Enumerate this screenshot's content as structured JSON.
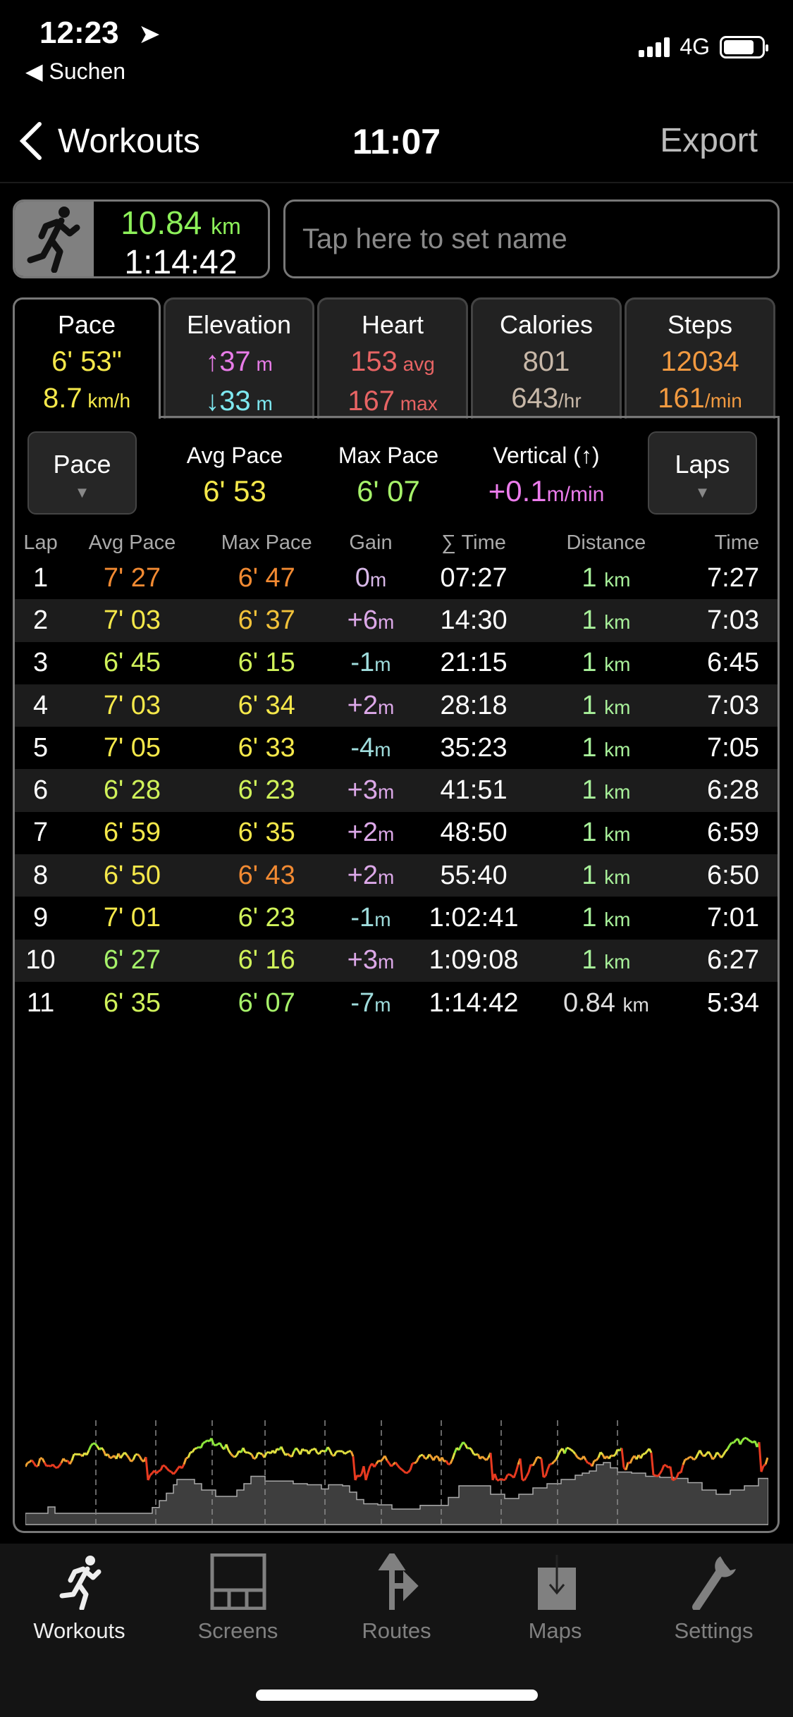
{
  "status": {
    "time": "12:23",
    "back": "◀ Suchen",
    "network": "4G"
  },
  "nav": {
    "back": "Workouts",
    "title": "11:07",
    "export": "Export"
  },
  "summary": {
    "distance": "10.84",
    "distance_unit": "km",
    "duration": "1:14:42"
  },
  "name_placeholder": "Tap here to set name",
  "tabs": [
    {
      "label": "Pace",
      "v1": "6' 53\"",
      "v2": "8.7",
      "v2u": " km/h"
    },
    {
      "label": "Elevation",
      "v1": "↑37",
      "v1u": " m",
      "v2": "↓33",
      "v2u": " m"
    },
    {
      "label": "Heart",
      "v1": "153",
      "v1u": " avg",
      "v2": "167",
      "v2u": " max"
    },
    {
      "label": "Calories",
      "v1": "801",
      "v2": "643",
      "v2u": "/hr"
    },
    {
      "label": "Steps",
      "v1": "12034",
      "v2": "161",
      "v2u": "/min"
    }
  ],
  "controls": {
    "left_select": "Pace",
    "right_select": "Laps",
    "stats": [
      {
        "label": "Avg Pace",
        "value": "6' 53"
      },
      {
        "label": "Max Pace",
        "value": "6' 07"
      },
      {
        "label": "Vertical (↑)",
        "value": "+0.1",
        "unit": "m/min"
      }
    ]
  },
  "colors": {
    "orange": "#f28a32",
    "yelloworange": "#f2c23a",
    "yellow": "#f5e84a",
    "yellowgreen": "#d0f25a",
    "green": "#a6f26a",
    "gain_pos": "#dca8e8",
    "gain_neg": "#9fdcdc",
    "gain_zero": "#d8b8e8",
    "distance": "#a8f09a"
  },
  "table": {
    "headers": [
      "Lap",
      "Avg Pace",
      "Max Pace",
      "Gain",
      "∑ Time",
      "Distance",
      "Time"
    ],
    "rows": [
      [
        "1",
        "7' 27",
        "6' 47",
        "0",
        "07:27",
        "1",
        "7:27"
      ],
      [
        "2",
        "7' 03",
        "6' 37",
        "+6",
        "14:30",
        "1",
        "7:03"
      ],
      [
        "3",
        "6' 45",
        "6' 15",
        "-1",
        "21:15",
        "1",
        "6:45"
      ],
      [
        "4",
        "7' 03",
        "6' 34",
        "+2",
        "28:18",
        "1",
        "7:03"
      ],
      [
        "5",
        "7' 05",
        "6' 33",
        "-4",
        "35:23",
        "1",
        "7:05"
      ],
      [
        "6",
        "6' 28",
        "6' 23",
        "+3",
        "41:51",
        "1",
        "6:28"
      ],
      [
        "7",
        "6' 59",
        "6' 35",
        "+2",
        "48:50",
        "1",
        "6:59"
      ],
      [
        "8",
        "6' 50",
        "6' 43",
        "+2",
        "55:40",
        "1",
        "6:50"
      ],
      [
        "9",
        "7' 01",
        "6' 23",
        "-1",
        "1:02:41",
        "1",
        "7:01"
      ],
      [
        "10",
        "6' 27",
        "6' 16",
        "+3",
        "1:09:08",
        "1",
        "6:27"
      ],
      [
        "11",
        "6' 35",
        "6' 07",
        "-7",
        "1:14:42",
        "0.84",
        "5:34"
      ]
    ],
    "avg_colors": [
      "orange",
      "yellow",
      "yellowgreen",
      "yellow",
      "yellow",
      "yellowgreen",
      "yellow",
      "yellow",
      "yellow",
      "green",
      "yellowgreen"
    ],
    "max_colors": [
      "orange",
      "yelloworange",
      "yellowgreen",
      "yellow",
      "yellow",
      "yellowgreen",
      "yellow",
      "orange",
      "yellowgreen",
      "yellowgreen",
      "green"
    ],
    "gain_unit": "m",
    "distance_unit": "km"
  },
  "tabbar": [
    {
      "label": "Workouts",
      "icon": "running-icon"
    },
    {
      "label": "Screens",
      "icon": "screens-icon"
    },
    {
      "label": "Routes",
      "icon": "routes-icon"
    },
    {
      "label": "Maps",
      "icon": "maps-icon"
    },
    {
      "label": "Settings",
      "icon": "wrench-icon"
    }
  ]
}
